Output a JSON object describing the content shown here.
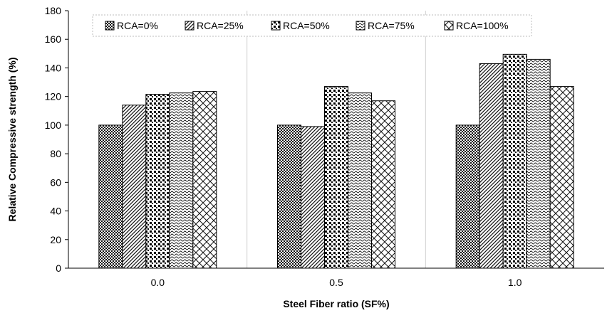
{
  "chart_data": {
    "type": "bar",
    "title": "",
    "xlabel": "Steel Fiber ratio (SF%)",
    "ylabel": "Relative Compressive strength (%)",
    "categories": [
      "0.0",
      "0.5",
      "1.0"
    ],
    "ylim": [
      0,
      180
    ],
    "yticks": [
      0,
      20,
      40,
      60,
      80,
      100,
      120,
      140,
      160,
      180
    ],
    "grid": "vertical lines between categories",
    "legend_position": "top",
    "series": [
      {
        "name": "RCA=0%",
        "values": [
          100,
          100,
          100
        ],
        "pattern": "dense-dots"
      },
      {
        "name": "RCA=25%",
        "values": [
          114,
          99,
          143
        ],
        "pattern": "diagonal-lines"
      },
      {
        "name": "RCA=50%",
        "values": [
          121.5,
          127,
          149.5
        ],
        "pattern": "large-dots"
      },
      {
        "name": "RCA=75%",
        "values": [
          122.5,
          122.5,
          146
        ],
        "pattern": "wavy"
      },
      {
        "name": "RCA=100%",
        "values": [
          123.5,
          117,
          127
        ],
        "pattern": "crosshatch"
      }
    ]
  }
}
